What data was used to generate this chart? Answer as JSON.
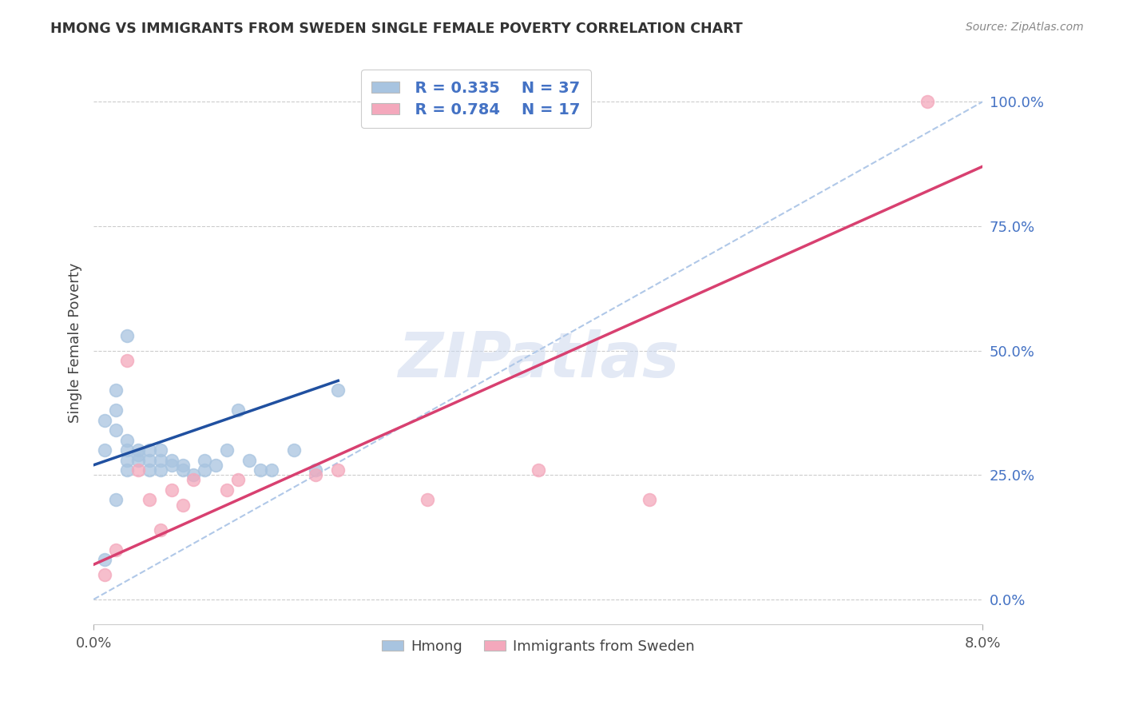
{
  "title": "HMONG VS IMMIGRANTS FROM SWEDEN SINGLE FEMALE POVERTY CORRELATION CHART",
  "source": "Source: ZipAtlas.com",
  "ylabel": "Single Female Poverty",
  "ytick_labels": [
    "0.0%",
    "25.0%",
    "50.0%",
    "75.0%",
    "100.0%"
  ],
  "ytick_values": [
    0.0,
    0.25,
    0.5,
    0.75,
    1.0
  ],
  "legend_label1": "Hmong",
  "legend_label2": "Immigrants from Sweden",
  "R1": 0.335,
  "N1": 37,
  "R2": 0.784,
  "N2": 17,
  "hmong_color": "#a8c4e0",
  "sweden_color": "#f4a8bc",
  "hmong_line_color": "#2050a0",
  "sweden_line_color": "#d84070",
  "ref_line_color": "#b0c8e8",
  "watermark": "ZIPatlas",
  "hmong_x": [
    0.001,
    0.001,
    0.002,
    0.002,
    0.002,
    0.003,
    0.003,
    0.003,
    0.003,
    0.004,
    0.004,
    0.004,
    0.005,
    0.005,
    0.005,
    0.006,
    0.006,
    0.006,
    0.007,
    0.007,
    0.008,
    0.008,
    0.009,
    0.01,
    0.01,
    0.011,
    0.012,
    0.013,
    0.014,
    0.015,
    0.016,
    0.018,
    0.02,
    0.022,
    0.001,
    0.002,
    0.003
  ],
  "hmong_y": [
    0.3,
    0.36,
    0.34,
    0.38,
    0.42,
    0.3,
    0.32,
    0.28,
    0.26,
    0.29,
    0.3,
    0.28,
    0.3,
    0.28,
    0.26,
    0.3,
    0.28,
    0.26,
    0.28,
    0.27,
    0.27,
    0.26,
    0.25,
    0.26,
    0.28,
    0.27,
    0.3,
    0.38,
    0.28,
    0.26,
    0.26,
    0.3,
    0.26,
    0.42,
    0.08,
    0.2,
    0.53
  ],
  "sweden_x": [
    0.001,
    0.002,
    0.003,
    0.004,
    0.005,
    0.006,
    0.007,
    0.008,
    0.009,
    0.012,
    0.013,
    0.02,
    0.022,
    0.03,
    0.04,
    0.05,
    0.075
  ],
  "sweden_y": [
    0.05,
    0.1,
    0.48,
    0.26,
    0.2,
    0.14,
    0.22,
    0.19,
    0.24,
    0.22,
    0.24,
    0.25,
    0.26,
    0.2,
    0.26,
    0.2,
    1.0
  ],
  "xlim": [
    0.0,
    0.08
  ],
  "ylim": [
    -0.05,
    1.08
  ]
}
